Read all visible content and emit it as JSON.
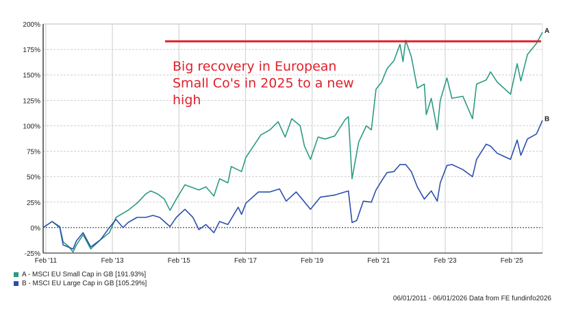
{
  "chart_data": {
    "type": "line",
    "title": "",
    "xlabel": "",
    "ylabel": "",
    "ylim": [
      -25,
      200
    ],
    "xlim": [
      2011.0,
      2026.0
    ],
    "yticks": [
      -25,
      0,
      25,
      50,
      75,
      100,
      125,
      150,
      175,
      200
    ],
    "ytick_labels": [
      "-25%",
      "0%",
      "25%",
      "50%",
      "75%",
      "100%",
      "125%",
      "150%",
      "175%",
      "200%"
    ],
    "xticks": [
      2011.08,
      2013.08,
      2015.08,
      2017.08,
      2019.08,
      2021.08,
      2023.08,
      2025.08
    ],
    "xtick_labels": [
      "Feb '11",
      "Feb '13",
      "Feb '15",
      "Feb '17",
      "Feb '19",
      "Feb '21",
      "Feb '23",
      "Feb '25"
    ],
    "grid": true,
    "legend_position": "bottom-left",
    "series": [
      {
        "name": "A - MSCI EU Small Cap in GB [191.93%]",
        "end_label": "A",
        "color": "#2a9a82",
        "x": [
          2011.0,
          2011.27,
          2011.5,
          2011.6,
          2011.75,
          2011.9,
          2012.0,
          2012.2,
          2012.43,
          2012.72,
          2012.99,
          2013.19,
          2013.55,
          2013.82,
          2014.08,
          2014.23,
          2014.44,
          2014.64,
          2014.81,
          2015.0,
          2015.26,
          2015.68,
          2015.89,
          2016.13,
          2016.3,
          2016.55,
          2016.65,
          2016.96,
          2017.09,
          2017.4,
          2017.54,
          2017.81,
          2018.06,
          2018.27,
          2018.47,
          2018.72,
          2018.85,
          2019.03,
          2019.26,
          2019.47,
          2019.76,
          2020.07,
          2020.17,
          2020.28,
          2020.48,
          2020.71,
          2020.86,
          2021.0,
          2021.17,
          2021.33,
          2021.54,
          2021.72,
          2021.81,
          2021.89,
          2022.06,
          2022.24,
          2022.45,
          2022.51,
          2022.66,
          2022.84,
          2022.93,
          2023.13,
          2023.28,
          2023.61,
          2023.9,
          2024.02,
          2024.31,
          2024.44,
          2024.64,
          2025.04,
          2025.24,
          2025.35,
          2025.55,
          2025.82,
          2026.0
        ],
        "y": [
          0,
          6,
          1,
          -14,
          -18,
          -24,
          -17,
          -7,
          -21,
          -12,
          -5,
          10,
          17,
          24,
          33,
          36,
          33,
          28,
          17,
          28,
          42,
          37,
          40,
          31,
          48,
          44,
          60,
          55,
          69,
          84,
          91,
          96,
          104,
          89,
          107,
          100,
          80,
          67,
          89,
          87,
          90,
          106,
          109,
          48,
          84,
          100,
          96,
          136,
          143,
          156,
          164,
          180,
          163,
          184,
          168,
          137,
          141,
          111,
          127,
          96,
          125,
          147,
          127,
          129,
          107,
          141,
          145,
          153,
          143,
          131,
          161,
          144,
          170,
          181,
          191.93
        ]
      },
      {
        "name": "B - MSCI EU Large Cap in GB [105.29%]",
        "end_label": "B",
        "color": "#2b4eab",
        "x": [
          2011.0,
          2011.27,
          2011.5,
          2011.6,
          2011.75,
          2011.9,
          2012.0,
          2012.2,
          2012.43,
          2012.72,
          2012.99,
          2013.19,
          2013.4,
          2013.55,
          2013.82,
          2014.08,
          2014.3,
          2014.5,
          2014.81,
          2015.0,
          2015.26,
          2015.5,
          2015.68,
          2015.89,
          2016.13,
          2016.3,
          2016.55,
          2016.86,
          2016.96,
          2017.09,
          2017.47,
          2017.81,
          2018.1,
          2018.3,
          2018.6,
          2018.78,
          2019.03,
          2019.33,
          2019.76,
          2020.17,
          2020.28,
          2020.42,
          2020.62,
          2020.86,
          2021.0,
          2021.17,
          2021.33,
          2021.54,
          2021.72,
          2021.89,
          2022.06,
          2022.24,
          2022.45,
          2022.66,
          2022.84,
          2022.93,
          2023.13,
          2023.28,
          2023.61,
          2023.9,
          2024.02,
          2024.31,
          2024.44,
          2024.64,
          2025.04,
          2025.24,
          2025.35,
          2025.55,
          2025.82,
          2026.0
        ],
        "y": [
          0,
          6,
          0,
          -17,
          -19,
          -21,
          -13,
          -5,
          -19,
          -12,
          0,
          8,
          0,
          5,
          10,
          10,
          12,
          10,
          1,
          10,
          18,
          10,
          -2,
          3,
          -5,
          6,
          3,
          20,
          13,
          24,
          35,
          35,
          38,
          26,
          35,
          28,
          18,
          30,
          32,
          36,
          5,
          7,
          26,
          25,
          37,
          46,
          54,
          55,
          62,
          62,
          55,
          40,
          28,
          36,
          26,
          44,
          61,
          62,
          57,
          50,
          67,
          82,
          80,
          73,
          67,
          86,
          71,
          87,
          92,
          105.29
        ]
      }
    ],
    "annotations": {
      "text_lines": [
        "Big recovery in European",
        "Small Co's in 2025 to a new",
        "high"
      ],
      "reference_line_value": 183,
      "reference_line_color": "#e0202a"
    }
  },
  "footer": "06/01/2011 - 06/01/2026 Data from FE fundinfo2026"
}
